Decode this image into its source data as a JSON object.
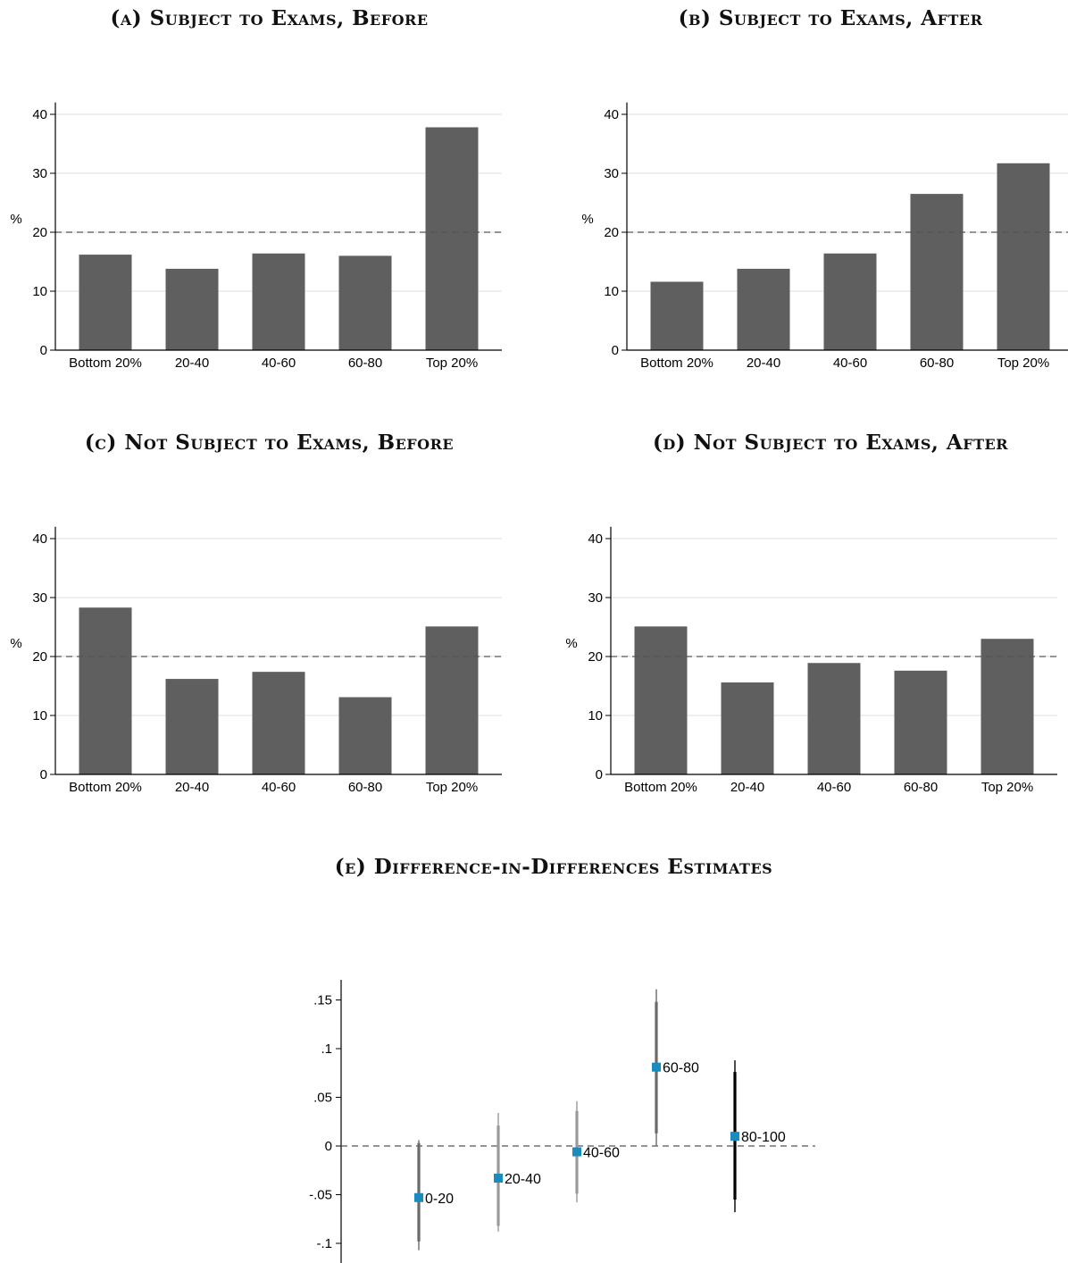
{
  "titles": {
    "a": "(a) Subject to Exams, Before",
    "b": "(b) Subject to Exams, After",
    "c": "(c) Not Subject to Exams, Before",
    "d": "(d) Not Subject to Exams, After",
    "e": "(e) Difference-in-Differences Estimates"
  },
  "colors": {
    "bar": "#5f5f5f",
    "grid": "#dedede",
    "reference_line": "#555555",
    "marker": "#1a8bbf",
    "ci_light": "#9a9a9a",
    "ci_mid": "#6a6a6a",
    "ci_dark": "#000000"
  },
  "chart_data": [
    {
      "id": "a",
      "type": "bar",
      "title": "(a) Subject to Exams, Before",
      "ylabel": "%",
      "categories": [
        "Bottom 20%",
        "20-40",
        "40-60",
        "60-80",
        "Top 20%"
      ],
      "values": [
        16.2,
        13.8,
        16.4,
        16.0,
        37.8
      ],
      "ylim": [
        0,
        42
      ],
      "yticks": [
        0,
        10,
        20,
        30,
        40
      ],
      "reference_line": 20,
      "grid": true
    },
    {
      "id": "b",
      "type": "bar",
      "title": "(b) Subject to Exams, After",
      "ylabel": "%",
      "categories": [
        "Bottom 20%",
        "20-40",
        "40-60",
        "60-80",
        "Top 20%"
      ],
      "values": [
        11.6,
        13.8,
        16.4,
        26.5,
        31.7
      ],
      "ylim": [
        0,
        42
      ],
      "yticks": [
        0,
        10,
        20,
        30,
        40
      ],
      "reference_line": 20,
      "grid": true
    },
    {
      "id": "c",
      "type": "bar",
      "title": "(c) Not Subject to Exams, Before",
      "ylabel": "%",
      "categories": [
        "Bottom 20%",
        "20-40",
        "40-60",
        "60-80",
        "Top 20%"
      ],
      "values": [
        28.3,
        16.2,
        17.4,
        13.1,
        25.1
      ],
      "ylim": [
        0,
        42
      ],
      "yticks": [
        0,
        10,
        20,
        30,
        40
      ],
      "reference_line": 20,
      "grid": true
    },
    {
      "id": "d",
      "type": "bar",
      "title": "(d) Not Subject to Exams, After",
      "ylabel": "%",
      "categories": [
        "Bottom 20%",
        "20-40",
        "40-60",
        "60-80",
        "Top 20%"
      ],
      "values": [
        25.1,
        15.6,
        18.9,
        17.6,
        23.0
      ],
      "ylim": [
        0,
        42
      ],
      "yticks": [
        0,
        10,
        20,
        30,
        40
      ],
      "reference_line": 20,
      "grid": true
    },
    {
      "id": "e",
      "type": "scatter",
      "title": "(e) Difference-in-Differences Estimates",
      "ylim": [
        -0.12,
        0.17
      ],
      "yticks": [
        0.15,
        0.1,
        0.05,
        0,
        -0.05,
        -0.1
      ],
      "ytick_labels": [
        ".15",
        ".1",
        ".05",
        "0",
        "-.05",
        "-.1"
      ],
      "reference_line": 0,
      "points": [
        {
          "label": "0-20",
          "estimate": -0.053,
          "ci95": [
            -0.107,
            0.006
          ],
          "ci90": [
            -0.098,
            0.003
          ],
          "ci_color": "ci_mid"
        },
        {
          "label": "20-40",
          "estimate": -0.033,
          "ci95": [
            -0.088,
            0.034
          ],
          "ci90": [
            -0.082,
            0.021
          ],
          "ci_color": "ci_light"
        },
        {
          "label": "40-60",
          "estimate": -0.006,
          "ci95": [
            -0.058,
            0.046
          ],
          "ci90": [
            -0.049,
            0.036
          ],
          "ci_color": "ci_light"
        },
        {
          "label": "60-80",
          "estimate": 0.081,
          "ci95": [
            0.0,
            0.161
          ],
          "ci90": [
            0.013,
            0.148
          ],
          "ci_color": "ci_mid"
        },
        {
          "label": "80-100",
          "estimate": 0.01,
          "ci95": [
            -0.068,
            0.088
          ],
          "ci90": [
            -0.055,
            0.076
          ],
          "ci_color": "ci_dark"
        }
      ]
    }
  ]
}
